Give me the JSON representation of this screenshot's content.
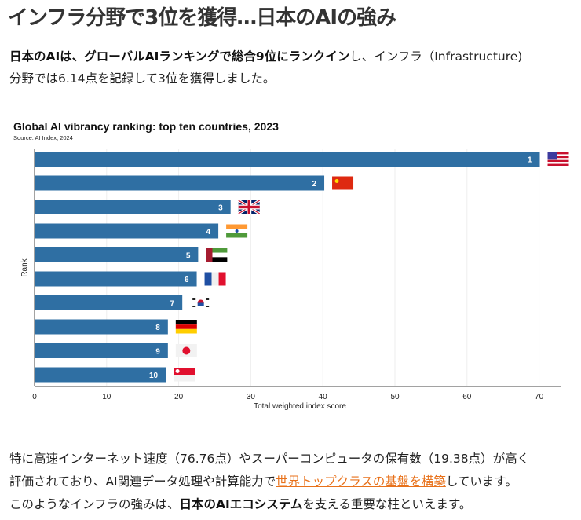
{
  "article": {
    "title": "インフラ分野で3位を獲得…日本のAIの強み",
    "intro": {
      "bold": "日本のAIは、グローバルAIランキングで総合9位にランクイン",
      "rest_line1": "し、インフラ（Infrastructure)",
      "line2": "分野では6.14点を記録して3位を獲得しました。"
    },
    "para2": {
      "line1": "特に高速インターネット速度（76.76点）やスーパーコンピュータの保有数（19.38点）が高く",
      "line2_pre": "評価されており、AI関連データ処理や計算能力で",
      "line2_link": "世界トップクラスの基盤を構築",
      "line2_post": "しています。",
      "line3_pre": "このようなインフラの強みは、",
      "line3_bold": "日本のAIエコシステム",
      "line3_post": "を支える重要な柱といえます。"
    }
  },
  "colors": {
    "bar": "#2f6fa3",
    "link": "#e8711a"
  },
  "chart_data": {
    "type": "bar",
    "orientation": "horizontal",
    "title": "Global AI vibrancy ranking: top ten countries, 2023",
    "subtitle": "Source: AI Index, 2024",
    "xlabel": "Total weighted index score",
    "ylabel": "Rank",
    "xlim": [
      0,
      73
    ],
    "xticks": [
      0,
      10,
      20,
      30,
      40,
      50,
      60,
      70
    ],
    "grid": true,
    "categories": [
      "1",
      "2",
      "3",
      "4",
      "5",
      "6",
      "7",
      "8",
      "9",
      "10"
    ],
    "countries": [
      "United States",
      "China",
      "United Kingdom",
      "India",
      "United Arab Emirates",
      "France",
      "South Korea",
      "Germany",
      "Japan",
      "Singapore"
    ],
    "flags": [
      "us-flag",
      "cn-flag",
      "gb-flag",
      "in-flag",
      "ae-flag",
      "fr-flag",
      "kr-flag",
      "de-flag",
      "jp-flag",
      "sg-flag"
    ],
    "values": [
      70.1,
      40.2,
      27.2,
      25.5,
      22.7,
      22.5,
      20.5,
      18.5,
      18.5,
      18.2
    ]
  }
}
